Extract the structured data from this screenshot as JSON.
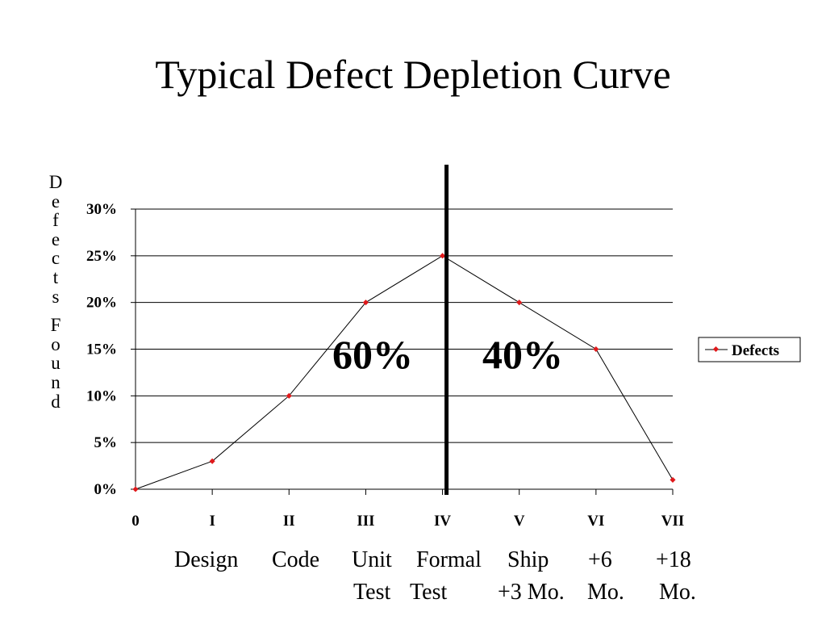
{
  "title": "Typical Defect Depletion Curve",
  "ylabel": "Defects Found",
  "legend": {
    "position": "right",
    "label": "Defects"
  },
  "colors": {
    "line": "#000000",
    "marker": "#e0191b",
    "divider": "#000000",
    "grid": "#000000"
  },
  "annotations": {
    "left": "60%",
    "right": "40%"
  },
  "phase_labels": {
    "row1": [
      "Design",
      "Code",
      "Unit",
      "Formal",
      "Ship",
      "+6",
      "+18"
    ],
    "row2": [
      "Test",
      "Test",
      "+3 Mo.",
      "Mo.",
      "Mo."
    ]
  },
  "chart_data": {
    "type": "line",
    "title": "",
    "xlabel": "",
    "ylabel": "Defects Found",
    "categories": [
      "0",
      "I",
      "II",
      "III",
      "IV",
      "V",
      "VI",
      "VII"
    ],
    "series": [
      {
        "name": "Defects",
        "values": [
          0,
          3,
          10,
          20,
          25,
          20,
          15,
          1
        ]
      }
    ],
    "ylim": [
      0,
      30
    ],
    "yticks": [
      "0%",
      "5%",
      "10%",
      "15%",
      "20%",
      "25%",
      "30%"
    ],
    "grid": true,
    "divider_after_category": "IV"
  }
}
